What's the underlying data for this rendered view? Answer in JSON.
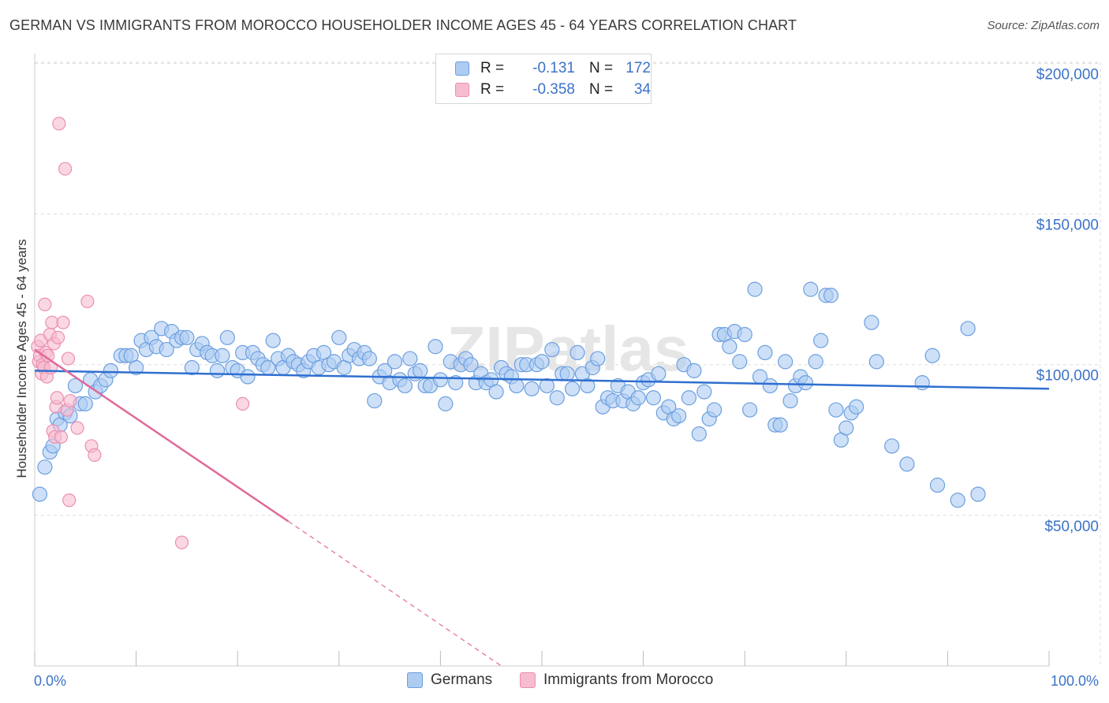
{
  "title": "GERMAN VS IMMIGRANTS FROM MOROCCO HOUSEHOLDER INCOME AGES 45 - 64 YEARS CORRELATION CHART",
  "source": "Source: ZipAtlas.com",
  "watermark": "ZIPatlas",
  "colors": {
    "blue_fill": "#aecbf2",
    "blue_stroke": "#6b9fe0",
    "blue_line": "#2f6fd0",
    "pink_fill": "#f6bcd0",
    "pink_stroke": "#ec8fb0",
    "pink_line": "#e0699a",
    "tick_text": "#3b72c8",
    "grid": "#dddddd"
  },
  "legend": {
    "rows": [
      {
        "r_label": "R =",
        "r_value": "-0.131",
        "n_label": "N =",
        "n_value": "172"
      },
      {
        "r_label": "R =",
        "r_value": "-0.358",
        "n_label": "N =",
        "n_value": "34"
      }
    ]
  },
  "bottom_legend": {
    "germans": "Germans",
    "morocco": "Immigrants from Morocco"
  },
  "chart_data": {
    "type": "scatter",
    "title": "GERMAN VS IMMIGRANTS FROM MOROCCO HOUSEHOLDER INCOME AGES 45 - 64 YEARS CORRELATION CHART",
    "xlabel": "",
    "ylabel": "Householder Income Ages 45 - 64 years",
    "xlim": [
      0,
      100
    ],
    "ylim": [
      0,
      210000
    ],
    "x_tick_labels": {
      "left": "0.0%",
      "right": "100.0%"
    },
    "y_ticks": [
      {
        "value": 50000,
        "label": "$50,000"
      },
      {
        "value": 100000,
        "label": "$100,000"
      },
      {
        "value": 150000,
        "label": "$150,000"
      },
      {
        "value": 200000,
        "label": "$200,000"
      }
    ],
    "grid": true,
    "legend_position": "top-center",
    "series": [
      {
        "name": "Germans",
        "color": "blue",
        "trend": {
          "x0": 0,
          "y0": 98000,
          "x1": 100,
          "y1": 92000
        },
        "points": [
          [
            0.5,
            57000
          ],
          [
            1.0,
            66000
          ],
          [
            1.5,
            71000
          ],
          [
            1.8,
            73000
          ],
          [
            2.2,
            82000
          ],
          [
            2.5,
            80000
          ],
          [
            3.0,
            84000
          ],
          [
            3.5,
            83000
          ],
          [
            4.0,
            93000
          ],
          [
            4.5,
            87000
          ],
          [
            5.0,
            87000
          ],
          [
            5.5,
            95000
          ],
          [
            6.0,
            91000
          ],
          [
            6.5,
            93000
          ],
          [
            7.0,
            95000
          ],
          [
            7.5,
            98000
          ],
          [
            8.5,
            103000
          ],
          [
            9.0,
            103000
          ],
          [
            9.5,
            103000
          ],
          [
            10.0,
            99000
          ],
          [
            10.5,
            108000
          ],
          [
            11.0,
            105000
          ],
          [
            11.5,
            109000
          ],
          [
            12.0,
            106000
          ],
          [
            12.5,
            112000
          ],
          [
            13.0,
            105000
          ],
          [
            13.5,
            111000
          ],
          [
            14.0,
            108000
          ],
          [
            14.5,
            109000
          ],
          [
            15.0,
            109000
          ],
          [
            15.5,
            99000
          ],
          [
            16.0,
            105000
          ],
          [
            16.5,
            107000
          ],
          [
            17.0,
            104000
          ],
          [
            17.5,
            103000
          ],
          [
            18.0,
            98000
          ],
          [
            18.5,
            103000
          ],
          [
            19.0,
            109000
          ],
          [
            19.5,
            99000
          ],
          [
            20.0,
            98000
          ],
          [
            20.5,
            104000
          ],
          [
            21.0,
            96000
          ],
          [
            21.5,
            104000
          ],
          [
            22.0,
            102000
          ],
          [
            22.5,
            100000
          ],
          [
            23.0,
            99000
          ],
          [
            23.5,
            108000
          ],
          [
            24.0,
            102000
          ],
          [
            24.5,
            99000
          ],
          [
            25.0,
            103000
          ],
          [
            25.5,
            101000
          ],
          [
            26.0,
            100000
          ],
          [
            26.5,
            98000
          ],
          [
            27.0,
            101000
          ],
          [
            27.5,
            103000
          ],
          [
            28.0,
            99000
          ],
          [
            28.5,
            104000
          ],
          [
            29.0,
            100000
          ],
          [
            29.5,
            101000
          ],
          [
            30.0,
            109000
          ],
          [
            30.5,
            99000
          ],
          [
            31.0,
            103000
          ],
          [
            31.5,
            105000
          ],
          [
            32.0,
            102000
          ],
          [
            32.5,
            104000
          ],
          [
            33.0,
            102000
          ],
          [
            33.5,
            88000
          ],
          [
            34.0,
            96000
          ],
          [
            34.5,
            98000
          ],
          [
            35.0,
            94000
          ],
          [
            35.5,
            101000
          ],
          [
            36.0,
            95000
          ],
          [
            36.5,
            93000
          ],
          [
            37.0,
            102000
          ],
          [
            37.5,
            97000
          ],
          [
            38.0,
            98000
          ],
          [
            38.5,
            93000
          ],
          [
            39.0,
            93000
          ],
          [
            39.5,
            106000
          ],
          [
            40.0,
            95000
          ],
          [
            40.5,
            87000
          ],
          [
            41.0,
            101000
          ],
          [
            41.5,
            94000
          ],
          [
            42.0,
            100000
          ],
          [
            42.5,
            102000
          ],
          [
            43.0,
            100000
          ],
          [
            43.5,
            94000
          ],
          [
            44.0,
            97000
          ],
          [
            44.5,
            94000
          ],
          [
            45.0,
            95000
          ],
          [
            45.5,
            91000
          ],
          [
            46.0,
            99000
          ],
          [
            46.5,
            97000
          ],
          [
            47.0,
            96000
          ],
          [
            47.5,
            93000
          ],
          [
            48.0,
            100000
          ],
          [
            48.5,
            100000
          ],
          [
            49.0,
            92000
          ],
          [
            49.5,
            100000
          ],
          [
            50.0,
            101000
          ],
          [
            50.5,
            93000
          ],
          [
            51.0,
            105000
          ],
          [
            51.5,
            89000
          ],
          [
            52.0,
            97000
          ],
          [
            52.5,
            97000
          ],
          [
            53.0,
            92000
          ],
          [
            53.5,
            104000
          ],
          [
            54.0,
            97000
          ],
          [
            54.5,
            93000
          ],
          [
            55.0,
            99000
          ],
          [
            55.5,
            102000
          ],
          [
            56.0,
            86000
          ],
          [
            56.5,
            89000
          ],
          [
            57.0,
            88000
          ],
          [
            57.5,
            93000
          ],
          [
            58.0,
            88000
          ],
          [
            58.5,
            91000
          ],
          [
            59.0,
            87000
          ],
          [
            59.5,
            89000
          ],
          [
            60.0,
            94000
          ],
          [
            60.5,
            95000
          ],
          [
            61.0,
            89000
          ],
          [
            61.5,
            97000
          ],
          [
            62.0,
            84000
          ],
          [
            62.5,
            86000
          ],
          [
            63.0,
            82000
          ],
          [
            63.5,
            83000
          ],
          [
            64.0,
            100000
          ],
          [
            64.5,
            89000
          ],
          [
            65.0,
            98000
          ],
          [
            65.5,
            77000
          ],
          [
            66.0,
            91000
          ],
          [
            66.5,
            82000
          ],
          [
            67.0,
            85000
          ],
          [
            67.5,
            110000
          ],
          [
            68.0,
            110000
          ],
          [
            68.5,
            106000
          ],
          [
            69.0,
            111000
          ],
          [
            69.5,
            101000
          ],
          [
            70.0,
            110000
          ],
          [
            70.5,
            85000
          ],
          [
            71.0,
            125000
          ],
          [
            71.5,
            96000
          ],
          [
            72.0,
            104000
          ],
          [
            72.5,
            93000
          ],
          [
            73.0,
            80000
          ],
          [
            73.5,
            80000
          ],
          [
            74.0,
            101000
          ],
          [
            74.5,
            88000
          ],
          [
            75.0,
            93000
          ],
          [
            75.5,
            96000
          ],
          [
            76.0,
            94000
          ],
          [
            76.5,
            125000
          ],
          [
            77.0,
            101000
          ],
          [
            77.5,
            108000
          ],
          [
            78.0,
            123000
          ],
          [
            78.5,
            123000
          ],
          [
            79.0,
            85000
          ],
          [
            79.5,
            75000
          ],
          [
            80.0,
            79000
          ],
          [
            80.5,
            84000
          ],
          [
            81.0,
            86000
          ],
          [
            82.5,
            114000
          ],
          [
            83.0,
            101000
          ],
          [
            84.5,
            73000
          ],
          [
            86.0,
            67000
          ],
          [
            87.5,
            94000
          ],
          [
            88.5,
            103000
          ],
          [
            89.0,
            60000
          ],
          [
            91.0,
            55000
          ],
          [
            92.0,
            112000
          ],
          [
            93.0,
            57000
          ]
        ]
      },
      {
        "name": "Immigrants from Morocco",
        "color": "pink",
        "trend": {
          "x0": 0,
          "y0": 105000,
          "x1": 25,
          "y1": 48000,
          "dash_x1": 46,
          "dash_y1": 0
        },
        "points": [
          [
            0.3,
            106000
          ],
          [
            0.4,
            101000
          ],
          [
            0.5,
            103000
          ],
          [
            0.6,
            108000
          ],
          [
            0.7,
            97000
          ],
          [
            0.8,
            100000
          ],
          [
            0.9,
            99000
          ],
          [
            1.0,
            120000
          ],
          [
            1.1,
            104000
          ],
          [
            1.2,
            96000
          ],
          [
            1.3,
            103000
          ],
          [
            1.5,
            110000
          ],
          [
            1.6,
            99000
          ],
          [
            1.7,
            114000
          ],
          [
            1.8,
            78000
          ],
          [
            1.9,
            107000
          ],
          [
            2.0,
            76000
          ],
          [
            2.1,
            86000
          ],
          [
            2.2,
            89000
          ],
          [
            2.3,
            109000
          ],
          [
            2.4,
            180000
          ],
          [
            2.6,
            76000
          ],
          [
            2.8,
            114000
          ],
          [
            3.0,
            165000
          ],
          [
            3.2,
            85000
          ],
          [
            3.3,
            102000
          ],
          [
            3.4,
            55000
          ],
          [
            3.5,
            88000
          ],
          [
            4.2,
            79000
          ],
          [
            5.2,
            121000
          ],
          [
            5.6,
            73000
          ],
          [
            5.9,
            70000
          ],
          [
            14.5,
            41000
          ],
          [
            20.5,
            87000
          ]
        ]
      }
    ]
  }
}
